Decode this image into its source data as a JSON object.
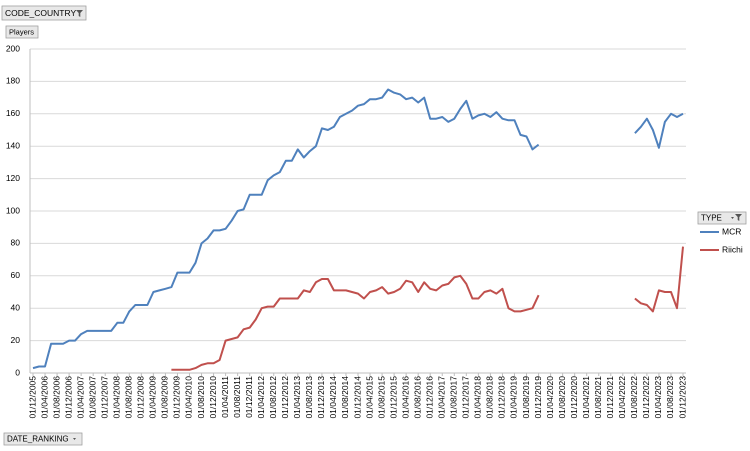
{
  "header": {
    "filter_field": "CODE_COUNTRY",
    "value_field": "Players"
  },
  "footer": {
    "axis_field": "DATE_RANKING"
  },
  "chart_data": {
    "type": "line",
    "legend_title": "TYPE",
    "legend": "right",
    "grid": true,
    "categories": [
      "01/12/2005",
      null,
      "01/04/2006",
      null,
      "01/08/2006",
      null,
      "01/12/2006",
      null,
      "01/04/2007",
      null,
      "01/08/2007",
      null,
      "01/12/2007",
      null,
      "01/04/2008",
      null,
      "01/08/2008",
      null,
      "01/12/2008",
      null,
      "01/04/2009",
      null,
      "01/08/2009",
      null,
      "01/12/2009",
      null,
      "01/04/2010",
      null,
      "01/08/2010",
      null,
      "01/12/2010",
      null,
      "01/04/2011",
      null,
      "01/08/2011",
      null,
      "01/12/2011",
      null,
      "01/04/2012",
      null,
      "01/08/2012",
      null,
      "01/12/2012",
      null,
      "01/04/2013",
      null,
      "01/08/2013",
      null,
      "01/12/2013",
      null,
      "01/04/2014",
      null,
      "01/08/2014",
      null,
      "01/12/2014",
      null,
      "01/04/2015",
      null,
      "01/08/2015",
      null,
      "01/12/2015",
      null,
      "01/04/2016",
      null,
      "01/08/2016",
      null,
      "01/12/2016",
      null,
      "01/04/2017",
      null,
      "01/08/2017",
      null,
      "01/12/2017",
      null,
      "01/04/2018",
      null,
      "01/08/2018",
      null,
      "01/12/2018",
      null,
      "01/04/2019",
      null,
      "01/08/2019",
      null,
      "01/12/2019",
      null,
      "01/04/2020",
      null,
      "01/08/2020",
      null,
      "01/12/2020",
      null,
      "01/04/2021",
      null,
      "01/08/2021",
      null,
      "01/12/2021",
      null,
      "01/04/2022",
      null,
      "01/08/2022",
      null,
      "01/12/2022",
      null,
      "01/04/2023",
      null,
      "01/08/2023",
      null,
      "01/12/2023"
    ],
    "series": [
      {
        "name": "MCR",
        "color": "#4f81bd",
        "values": [
          3,
          4,
          4,
          18,
          18,
          18,
          20,
          20,
          24,
          26,
          26,
          26,
          26,
          26,
          31,
          31,
          38,
          42,
          42,
          42,
          50,
          51,
          52,
          53,
          62,
          62,
          62,
          68,
          80,
          83,
          88,
          88,
          89,
          94,
          100,
          101,
          110,
          110,
          110,
          119,
          122,
          124,
          131,
          131,
          138,
          133,
          137,
          140,
          151,
          150,
          152,
          158,
          160,
          162,
          165,
          166,
          169,
          169,
          170,
          175,
          173,
          172,
          169,
          170,
          167,
          170,
          157,
          157,
          158,
          155,
          157,
          163,
          168,
          157,
          159,
          160,
          158,
          161,
          157,
          156,
          156,
          147,
          146,
          138,
          141,
          null,
          null,
          null,
          null,
          null,
          null,
          null,
          null,
          null,
          null,
          null,
          null,
          null,
          null,
          null,
          148,
          152,
          157,
          150,
          139,
          155,
          160,
          158,
          160
        ]
      },
      {
        "name": "Riichi",
        "color": "#c0504d",
        "values": [
          null,
          null,
          null,
          null,
          null,
          null,
          null,
          null,
          null,
          null,
          null,
          null,
          null,
          null,
          null,
          null,
          null,
          null,
          null,
          null,
          null,
          null,
          null,
          2,
          2,
          2,
          2,
          3,
          5,
          6,
          6,
          8,
          20,
          21,
          22,
          27,
          28,
          33,
          40,
          41,
          41,
          46,
          46,
          46,
          46,
          51,
          50,
          56,
          58,
          58,
          51,
          51,
          51,
          50,
          49,
          46,
          50,
          51,
          53,
          49,
          50,
          52,
          57,
          56,
          50,
          56,
          52,
          51,
          54,
          55,
          59,
          60,
          55,
          46,
          46,
          50,
          51,
          49,
          52,
          40,
          38,
          38,
          39,
          40,
          48,
          null,
          null,
          null,
          null,
          null,
          null,
          null,
          null,
          null,
          null,
          null,
          null,
          null,
          null,
          null,
          46,
          43,
          42,
          38,
          51,
          50,
          50,
          40,
          78
        ]
      }
    ],
    "ylim": [
      0,
      200
    ],
    "yticks": [
      0,
      20,
      40,
      60,
      80,
      100,
      120,
      140,
      160,
      180,
      200
    ]
  }
}
